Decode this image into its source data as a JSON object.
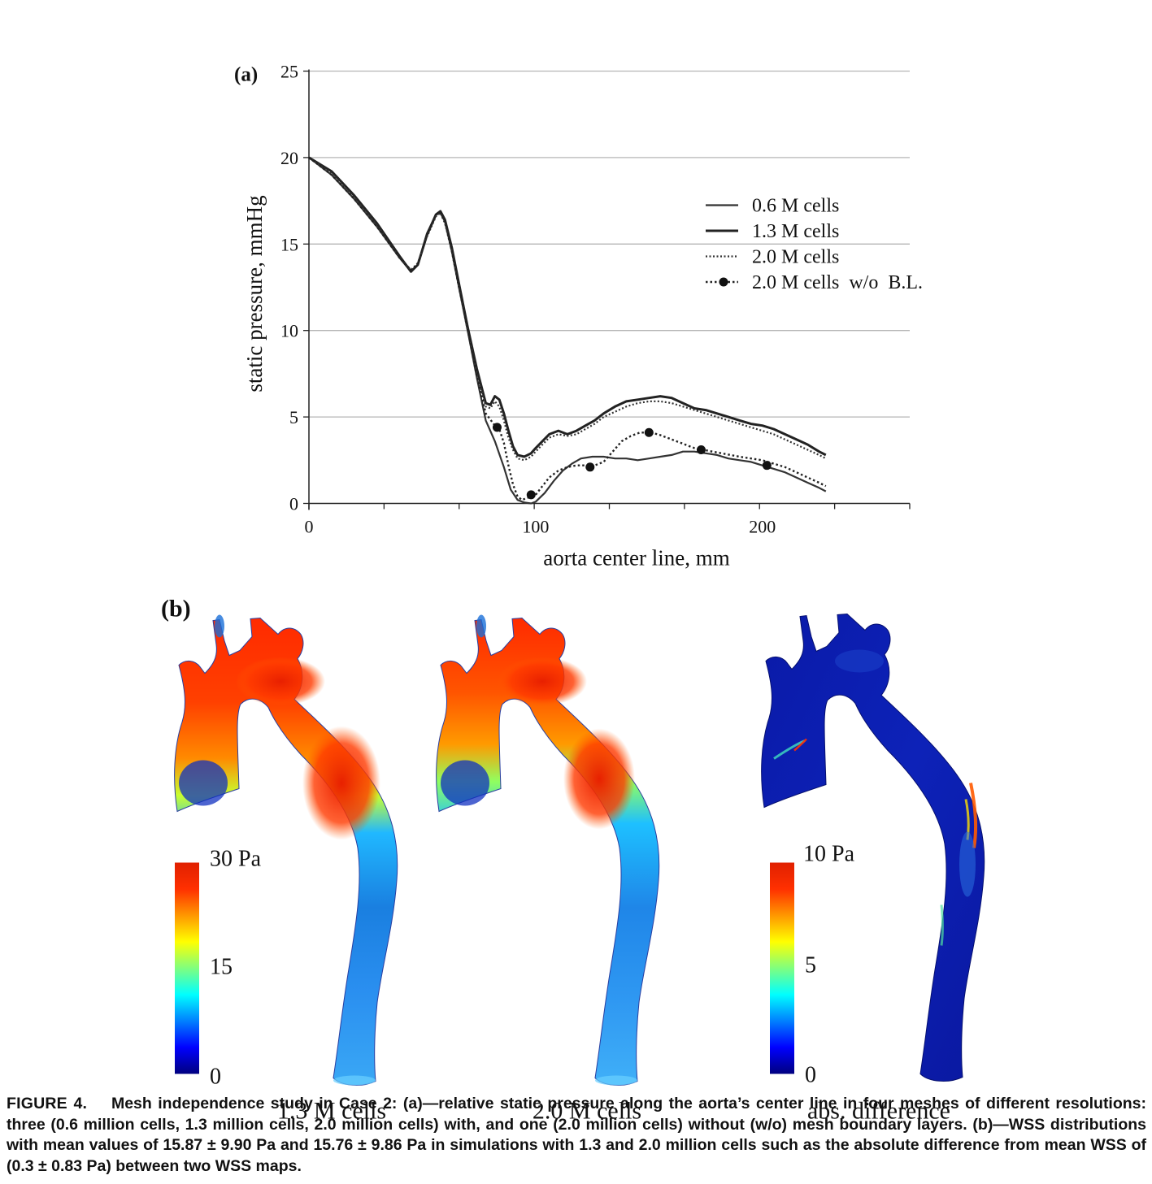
{
  "panel_a": {
    "label": "(a)",
    "chart_data": {
      "type": "line",
      "xlabel": "aorta center line, mm",
      "ylabel": "static pressure, mmHg",
      "xlim": [
        0,
        265
      ],
      "ylim": [
        0,
        25
      ],
      "x_ticks": [
        0,
        100,
        200
      ],
      "y_ticks": [
        0,
        5,
        10,
        15,
        20,
        25
      ],
      "grid": "horizontal",
      "legend_position": "right",
      "series": [
        {
          "name": "0.6 M cells",
          "style": "thin-solid",
          "x": [
            0,
            10,
            20,
            30,
            40,
            45,
            48,
            52,
            56,
            58,
            60,
            63,
            66,
            70,
            74,
            78,
            82,
            86,
            89,
            92,
            95,
            98,
            100,
            104,
            108,
            112,
            116,
            120,
            125,
            130,
            135,
            140,
            145,
            150,
            155,
            160,
            165,
            170,
            175,
            180,
            185,
            190,
            195,
            200,
            205,
            210,
            215,
            220,
            225,
            228
          ],
          "y": [
            20,
            19.0,
            17.6,
            16.0,
            14.2,
            13.4,
            13.8,
            15.6,
            16.7,
            16.8,
            16.3,
            14.6,
            12.6,
            10.0,
            7.3,
            4.8,
            3.6,
            2.1,
            0.8,
            0.2,
            0.05,
            0.0,
            0.1,
            0.6,
            1.3,
            1.9,
            2.3,
            2.6,
            2.7,
            2.7,
            2.6,
            2.6,
            2.5,
            2.6,
            2.7,
            2.8,
            3.0,
            3.0,
            2.9,
            2.8,
            2.6,
            2.5,
            2.4,
            2.2,
            2.0,
            1.8,
            1.5,
            1.2,
            0.9,
            0.7
          ]
        },
        {
          "name": "1.3 M cells",
          "style": "thick-solid",
          "x": [
            0,
            10,
            20,
            30,
            40,
            45,
            48,
            52,
            56,
            58,
            60,
            63,
            66,
            70,
            74,
            78,
            80,
            82,
            84,
            86,
            88,
            90,
            92,
            95,
            98,
            100,
            103,
            106,
            110,
            114,
            118,
            122,
            126,
            130,
            135,
            140,
            145,
            150,
            155,
            160,
            165,
            170,
            175,
            180,
            185,
            190,
            195,
            200,
            205,
            210,
            215,
            220,
            225,
            228
          ],
          "y": [
            20,
            19.2,
            17.8,
            16.2,
            14.3,
            13.4,
            13.8,
            15.5,
            16.7,
            16.9,
            16.4,
            14.8,
            12.8,
            10.2,
            7.8,
            5.8,
            5.7,
            6.2,
            6.0,
            5.2,
            4.2,
            3.3,
            2.8,
            2.7,
            2.9,
            3.2,
            3.6,
            4.0,
            4.2,
            4.0,
            4.2,
            4.5,
            4.8,
            5.2,
            5.6,
            5.9,
            6.0,
            6.1,
            6.2,
            6.1,
            5.8,
            5.5,
            5.4,
            5.2,
            5.0,
            4.8,
            4.6,
            4.5,
            4.3,
            4.0,
            3.7,
            3.4,
            3.0,
            2.8
          ]
        },
        {
          "name": "2.0 M cells",
          "style": "dotted",
          "x": [
            0,
            10,
            20,
            30,
            40,
            45,
            48,
            52,
            56,
            58,
            60,
            63,
            66,
            70,
            74,
            78,
            80,
            82,
            84,
            86,
            88,
            90,
            92,
            95,
            98,
            100,
            103,
            106,
            110,
            114,
            118,
            122,
            126,
            130,
            135,
            140,
            145,
            150,
            155,
            160,
            165,
            170,
            175,
            180,
            185,
            190,
            195,
            200,
            205,
            210,
            215,
            220,
            225,
            228
          ],
          "y": [
            20,
            19.1,
            17.7,
            16.1,
            14.2,
            13.5,
            13.9,
            15.4,
            16.6,
            16.8,
            16.2,
            14.6,
            12.6,
            10.0,
            7.6,
            5.6,
            5.5,
            5.9,
            5.6,
            4.8,
            3.8,
            3.1,
            2.6,
            2.5,
            2.7,
            3.0,
            3.4,
            3.8,
            4.0,
            3.9,
            4.0,
            4.3,
            4.6,
            5.0,
            5.3,
            5.6,
            5.8,
            5.9,
            5.9,
            5.8,
            5.6,
            5.4,
            5.2,
            5.0,
            4.8,
            4.6,
            4.4,
            4.2,
            4.0,
            3.7,
            3.4,
            3.1,
            2.8,
            2.6
          ]
        },
        {
          "name": "2.0 M cells  w/o  B.L.",
          "style": "dotted-markers",
          "x": [
            0,
            10,
            20,
            30,
            40,
            45,
            48,
            52,
            56,
            58,
            60,
            63,
            66,
            70,
            74,
            78,
            82,
            84,
            86,
            88,
            90,
            92,
            94,
            96,
            98,
            100,
            103,
            106,
            110,
            114,
            118,
            122,
            126,
            130,
            134,
            138,
            142,
            146,
            150,
            154,
            158,
            162,
            166,
            170,
            174,
            178,
            182,
            186,
            190,
            195,
            200,
            205,
            210,
            215,
            220,
            225,
            228
          ],
          "y": [
            20,
            19.0,
            17.6,
            16.0,
            14.2,
            13.5,
            13.8,
            15.5,
            16.7,
            16.8,
            16.3,
            14.6,
            12.6,
            10.1,
            7.4,
            5.2,
            4.5,
            4.3,
            3.5,
            2.2,
            1.1,
            0.4,
            0.2,
            0.3,
            0.4,
            0.5,
            1.0,
            1.5,
            1.9,
            2.1,
            2.2,
            2.2,
            2.2,
            2.4,
            3.0,
            3.6,
            3.9,
            4.1,
            4.1,
            4.0,
            3.8,
            3.6,
            3.4,
            3.2,
            3.1,
            3.0,
            2.9,
            2.8,
            2.7,
            2.6,
            2.5,
            2.3,
            2.1,
            1.8,
            1.5,
            1.2,
            1.0
          ],
          "markers": [
            [
              83,
              4.4
            ],
            [
              98,
              0.5
            ],
            [
              124,
              2.1
            ],
            [
              150,
              4.1
            ],
            [
              173,
              3.1
            ],
            [
              202,
              2.2
            ]
          ]
        }
      ]
    }
  },
  "panel_b": {
    "label": "(b)",
    "colormap": [
      "#00007f",
      "#0000ff",
      "#007fff",
      "#00ffff",
      "#7fff7f",
      "#ffff00",
      "#ff7f00",
      "#ff0000",
      "#7f0000"
    ],
    "scale_1": {
      "max_label": "30 Pa",
      "mid_label": "15",
      "min_label": "0"
    },
    "scale_2": {
      "max_label": "10 Pa",
      "mid_label": "5",
      "min_label": "0"
    },
    "maps": [
      {
        "label": "1.3 M cells"
      },
      {
        "label": "2.0 M cells"
      },
      {
        "label": "abs. difference"
      }
    ]
  },
  "caption": {
    "lead": "FIGURE 4.",
    "text": "Mesh independence study in Case 2: (a)—relative static pressure along the aorta’s center line in four meshes of different resolutions: three (0.6 million cells, 1.3 million cells, 2.0 million cells) with, and one (2.0 million cells) without (w/o) mesh boundary layers. (b)—WSS distributions with mean values of 15.87 ± 9.90 Pa and 15.76 ± 9.86 Pa in simulations with 1.3 and 2.0 million cells such as the absolute difference from mean WSS of (0.3 ± 0.83 Pa) between two WSS maps."
  }
}
